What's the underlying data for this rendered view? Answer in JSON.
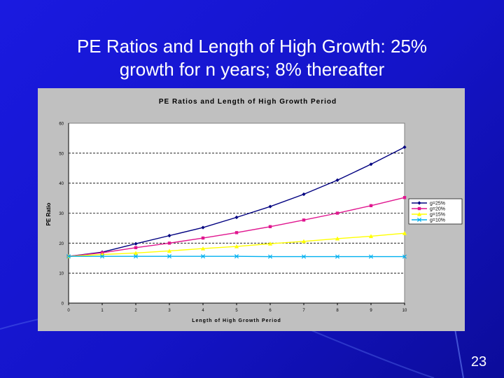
{
  "slide": {
    "title_line1": "PE Ratios and Length of High Growth: 25%",
    "title_line2": "growth for n years; 8% thereafter",
    "page_number": "23"
  },
  "colors": {
    "background": "#1616d8",
    "chart_bg": "#c0c0c0",
    "plot_bg": "#ffffff",
    "series": [
      "#000080",
      "#e0168f",
      "#ffff00",
      "#00b0f0"
    ]
  },
  "chart_data": {
    "type": "line",
    "title": "PE Ratios and Length of High Growth Period",
    "xlabel": "Length of High Growth Period",
    "ylabel": "PE Ratio",
    "x": [
      0,
      1,
      2,
      3,
      4,
      5,
      6,
      7,
      8,
      9,
      10
    ],
    "xticks": [
      "0",
      "1",
      "2",
      "3",
      "4",
      "5",
      "6",
      "7",
      "8",
      "9",
      "10"
    ],
    "yticks": [
      "0",
      "10",
      "20",
      "30",
      "40",
      "50",
      "60"
    ],
    "ylim": [
      0,
      60
    ],
    "grid": "horizontal dashed",
    "legend": "right",
    "series": [
      {
        "name": "g=25%",
        "marker": "diamond",
        "values": [
          15.6,
          17.0,
          19.8,
          22.5,
          25.2,
          28.6,
          32.2,
          36.3,
          41.0,
          46.3,
          52.0
        ]
      },
      {
        "name": "g=20%",
        "marker": "square",
        "values": [
          15.6,
          16.8,
          18.5,
          20.0,
          21.7,
          23.5,
          25.5,
          27.7,
          30.0,
          32.5,
          35.2
        ]
      },
      {
        "name": "g=15%",
        "marker": "triangle",
        "values": [
          15.6,
          16.2,
          16.7,
          17.4,
          18.2,
          18.9,
          19.8,
          20.6,
          21.5,
          22.3,
          23.3
        ]
      },
      {
        "name": "g=10%",
        "marker": "x",
        "values": [
          15.6,
          15.6,
          15.6,
          15.6,
          15.6,
          15.6,
          15.5,
          15.5,
          15.5,
          15.5,
          15.5
        ]
      }
    ]
  }
}
